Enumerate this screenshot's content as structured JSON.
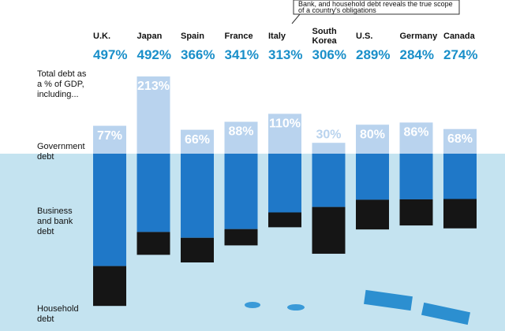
{
  "chart_data": {
    "type": "stacked-bar",
    "annotation": "Bank, and household debt reveals the true scope of a country's obligations",
    "total_label": "Total debt as a % of GDP, including...",
    "categories": [
      "U.K.",
      "Japan",
      "Spain",
      "France",
      "Italy",
      "South Korea",
      "U.S.",
      "Germany",
      "Canada"
    ],
    "total_labels": [
      "497%",
      "492%",
      "366%",
      "341%",
      "313%",
      "306%",
      "289%",
      "284%",
      "274%"
    ],
    "series": [
      {
        "name": "Government debt",
        "color": "#b9d3ee",
        "values": [
          77,
          213,
          66,
          88,
          110,
          30,
          80,
          86,
          68
        ],
        "value_labels": [
          "77%",
          "213%",
          "66%",
          "88%",
          "110%",
          "30%",
          "80%",
          "86%",
          "68%"
        ]
      },
      {
        "name": "Business and bank debt",
        "color": "#1f78c8",
        "values": [
          310,
          216,
          232,
          208,
          162,
          147,
          127,
          126,
          125
        ]
      },
      {
        "name": "Household debt",
        "color": "#151515",
        "values": [
          110,
          63,
          68,
          45,
          41,
          129,
          82,
          72,
          81
        ]
      }
    ]
  }
}
